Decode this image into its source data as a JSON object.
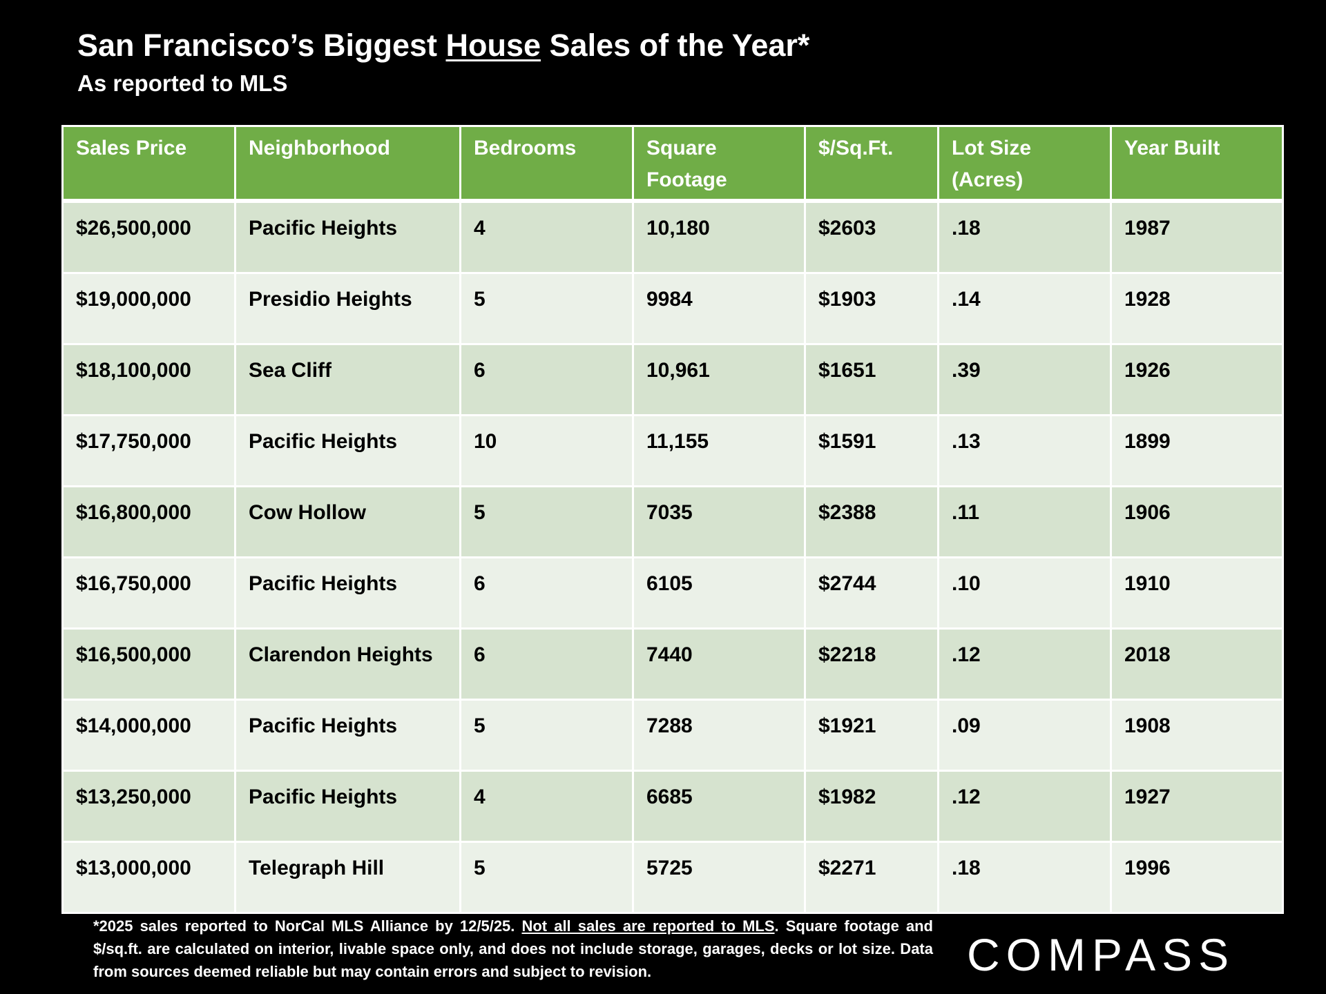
{
  "header": {
    "title": {
      "before": "San Francisco’s Biggest ",
      "underlined": "House",
      "after": " Sales of the Year*"
    },
    "subtitle": "As reported to MLS"
  },
  "table": {
    "columns": [
      "Sales Price",
      "Neighborhood",
      "Bedrooms",
      "Square Footage",
      "$/Sq.Ft.",
      "Lot Size (Acres)",
      "Year Built"
    ],
    "rows": [
      [
        "$26,500,000",
        "Pacific Heights",
        "4",
        "10,180",
        "$2603",
        ".18",
        "1987"
      ],
      [
        "$19,000,000",
        "Presidio Heights",
        "5",
        "9984",
        "$1903",
        ".14",
        "1928"
      ],
      [
        "$18,100,000",
        "Sea Cliff",
        "6",
        "10,961",
        "$1651",
        ".39",
        "1926"
      ],
      [
        "$17,750,000",
        "Pacific Heights",
        "10",
        "11,155",
        "$1591",
        ".13",
        "1899"
      ],
      [
        "$16,800,000",
        "Cow Hollow",
        "5",
        "7035",
        "$2388",
        ".11",
        "1906"
      ],
      [
        "$16,750,000",
        "Pacific Heights",
        "6",
        "6105",
        "$2744",
        ".10",
        "1910"
      ],
      [
        "$16,500,000",
        "Clarendon Heights",
        "6",
        "7440",
        "$2218",
        ".12",
        "2018"
      ],
      [
        "$14,000,000",
        "Pacific Heights",
        "5",
        "7288",
        "$1921",
        ".09",
        "1908"
      ],
      [
        "$13,250,000",
        "Pacific Heights",
        "4",
        "6685",
        "$1982",
        ".12",
        "1927"
      ],
      [
        "$13,000,000",
        "Telegraph Hill",
        "5",
        "5725",
        "$2271",
        ".18",
        "1996"
      ]
    ]
  },
  "footnote": {
    "before": "*2025 sales reported to NorCal MLS Alliance by 12/5/25. ",
    "underlined": "Not all sales are reported to MLS",
    "after": ". Square footage and $/sq.ft. are calculated on interior, livable space only, and does not include storage, garages, decks or lot size. Data from sources deemed reliable but may contain errors and subject to revision."
  },
  "logo": "COMPASS"
}
